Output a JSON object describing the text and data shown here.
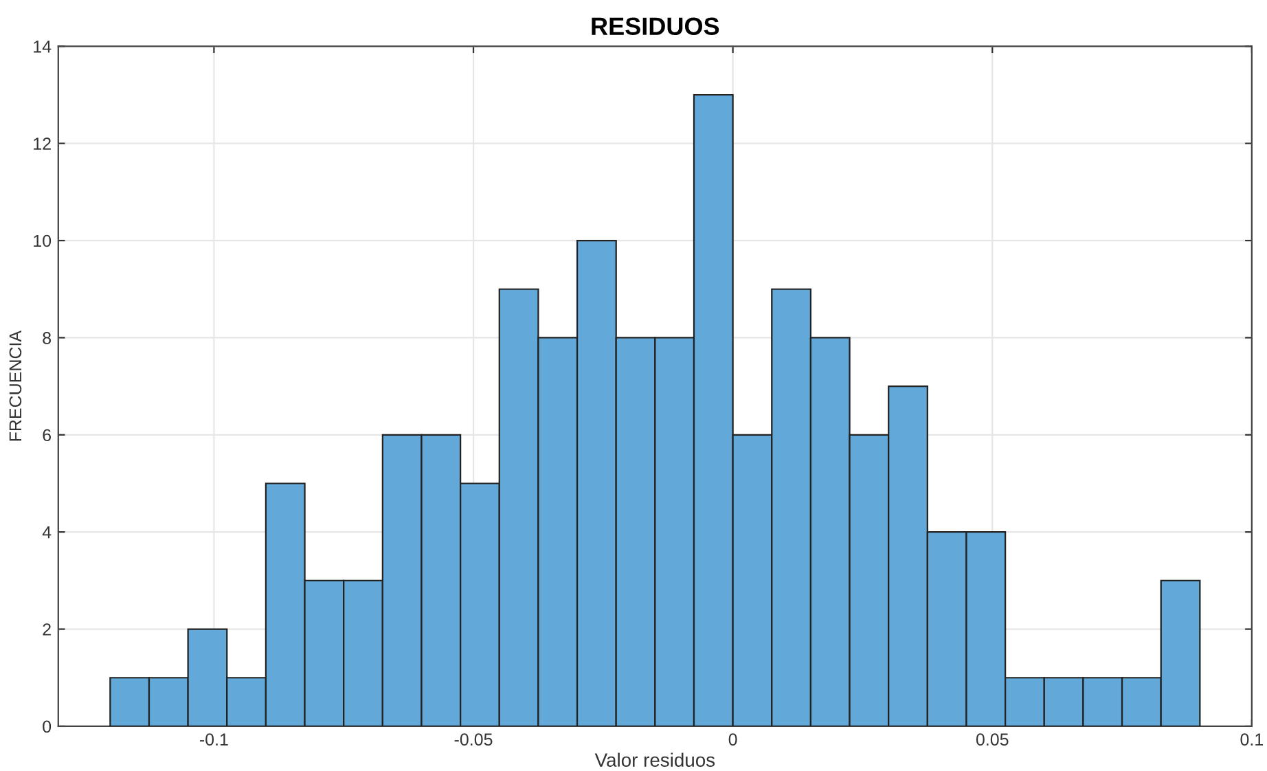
{
  "chart_data": {
    "type": "histogram",
    "title": "RESIDUOS",
    "xlabel": "Valor residuos",
    "ylabel": "FRECUENCIA",
    "bins": [
      -0.12,
      -0.1125,
      -0.105,
      -0.0975,
      -0.09,
      -0.0825,
      -0.075,
      -0.0675,
      -0.06,
      -0.0525,
      -0.045,
      -0.0375,
      -0.03,
      -0.0225,
      -0.015,
      -0.0075,
      0,
      0.0075,
      0.015,
      0.0225,
      0.03,
      0.0375,
      0.045,
      0.0525,
      0.06,
      0.0675,
      0.075,
      0.0825,
      0.09
    ],
    "values": [
      1,
      1,
      2,
      1,
      5,
      3,
      3,
      6,
      6,
      5,
      9,
      8,
      10,
      8,
      8,
      13,
      6,
      9,
      8,
      6,
      7,
      4,
      4,
      1,
      1,
      1,
      1,
      3
    ],
    "color": "#62a8d8",
    "xlim": [
      -0.13,
      0.1
    ],
    "xticks": [
      -0.1,
      -0.05,
      0,
      0.05,
      0.1
    ],
    "ylim": [
      0,
      14
    ],
    "yticks": [
      0,
      2,
      4,
      6,
      8,
      10,
      12,
      14
    ],
    "grid": true
  }
}
